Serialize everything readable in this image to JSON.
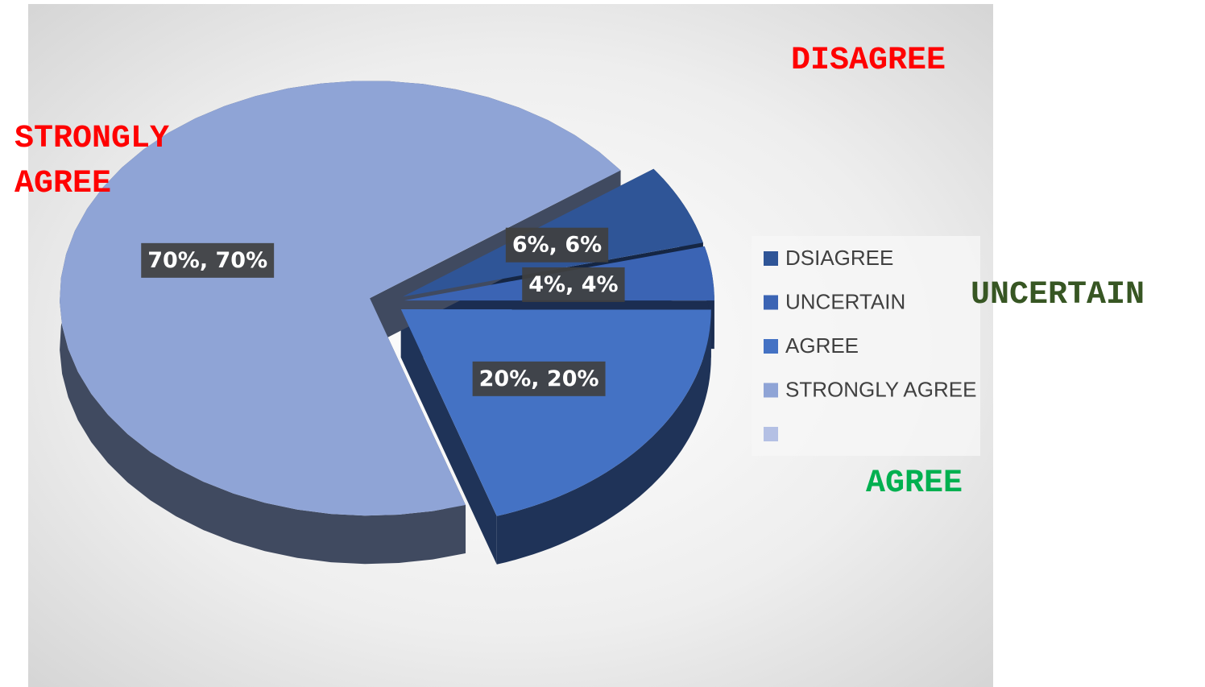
{
  "chart_data": {
    "type": "pie",
    "categories": [
      "DSIAGREE",
      "UNCERTAIN",
      "AGREE",
      "STRONGLY AGREE",
      null
    ],
    "values": [
      6,
      4,
      20,
      70,
      null
    ],
    "value_labels": [
      "6%, 6%",
      "4%, 4%",
      "20%, 20%",
      "70%, 70%",
      null
    ],
    "colors": [
      "#2f5597",
      "#3b64b4",
      "#4472c4",
      "#8fa4d6",
      "#b4c0e4"
    ],
    "legend": "right",
    "annotations": [
      {
        "text": "DISAGREE",
        "color": "#ff0000"
      },
      {
        "text": "STRONGLY AGREE",
        "color": "#ff0000"
      },
      {
        "text": "UNCERTAIN",
        "color": "#375623"
      },
      {
        "text": "AGREE",
        "color": "#00b050"
      }
    ]
  }
}
